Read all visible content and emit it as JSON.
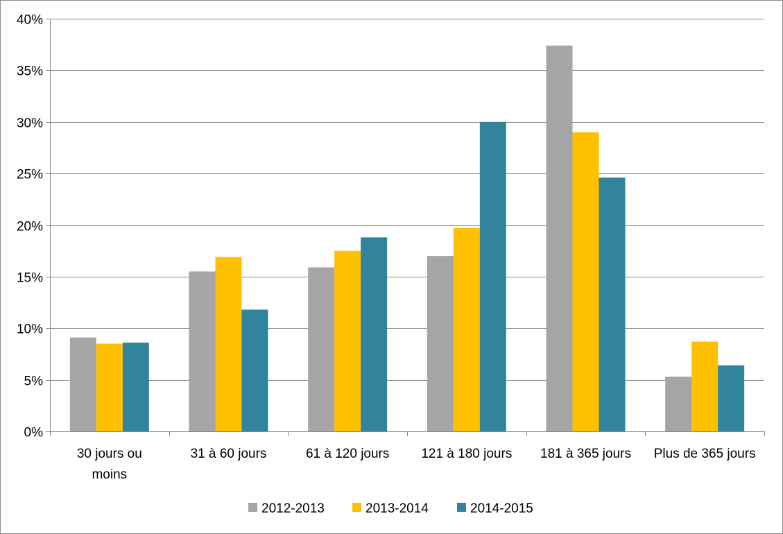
{
  "chart_data": {
    "type": "bar",
    "title": "",
    "xlabel": "",
    "ylabel": "",
    "ylim": [
      0,
      0.4
    ],
    "yticks": [
      0,
      0.05,
      0.1,
      0.15,
      0.2,
      0.25,
      0.3,
      0.35,
      0.4
    ],
    "ytick_labels": [
      "0%",
      "5%",
      "10%",
      "15%",
      "20%",
      "25%",
      "30%",
      "35%",
      "40%"
    ],
    "grid": true,
    "legend_position": "bottom",
    "categories": [
      [
        "30 jours ou",
        "moins"
      ],
      [
        "31 à 60 jours"
      ],
      [
        "61 à 120 jours"
      ],
      [
        "121 à 180 jours"
      ],
      [
        "181 à 365 jours"
      ],
      [
        "Plus de 365 jours"
      ]
    ],
    "series": [
      {
        "name": "2012-2013",
        "color": "#a5a5a5",
        "values": [
          0.091,
          0.155,
          0.159,
          0.17,
          0.374,
          0.053
        ]
      },
      {
        "name": "2013-2014",
        "color": "#ffc000",
        "values": [
          0.085,
          0.169,
          0.175,
          0.197,
          0.29,
          0.087
        ]
      },
      {
        "name": "2014-2015",
        "color": "#31849b",
        "values": [
          0.086,
          0.118,
          0.188,
          0.3,
          0.246,
          0.064
        ]
      }
    ]
  }
}
